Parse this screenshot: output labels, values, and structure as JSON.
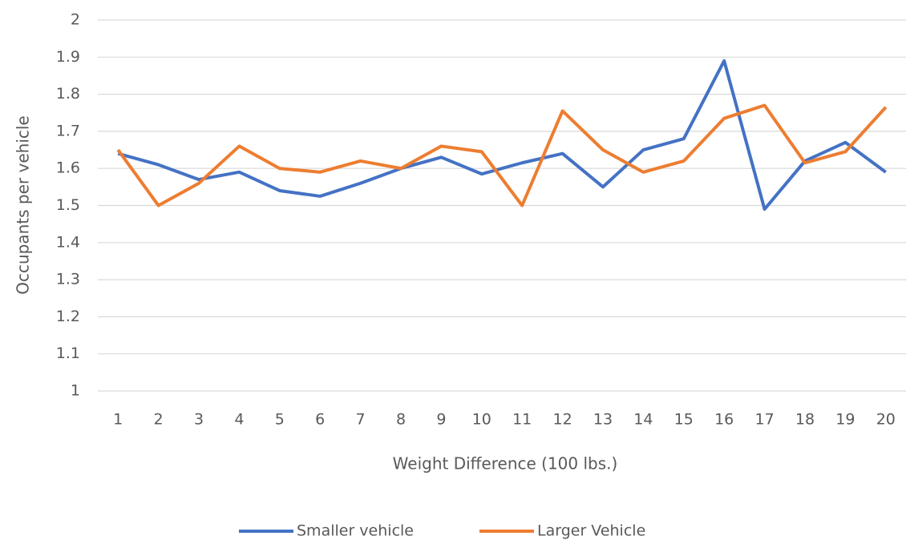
{
  "chart_data": {
    "type": "line",
    "x_label": "Weight Difference (100 lbs.)",
    "y_label": "Occupants per vehicle",
    "categories": [
      "1",
      "2",
      "3",
      "4",
      "5",
      "6",
      "7",
      "8",
      "9",
      "10",
      "11",
      "12",
      "13",
      "14",
      "15",
      "16",
      "17",
      "18",
      "19",
      "20"
    ],
    "series": [
      {
        "name": "Smaller vehicle",
        "color": "#4472c4",
        "values": [
          1.64,
          1.61,
          1.57,
          1.59,
          1.54,
          1.525,
          1.56,
          1.6,
          1.63,
          1.585,
          1.615,
          1.64,
          1.55,
          1.65,
          1.68,
          1.89,
          1.49,
          1.62,
          1.67,
          1.59
        ]
      },
      {
        "name": "Larger Vehicle",
        "color": "#ed7d31",
        "values": [
          1.65,
          1.5,
          1.56,
          1.66,
          1.6,
          1.59,
          1.62,
          1.6,
          1.66,
          1.645,
          1.5,
          1.755,
          1.65,
          1.59,
          1.62,
          1.735,
          1.77,
          1.615,
          1.645,
          1.765
        ]
      }
    ],
    "ylim": [
      1,
      2
    ],
    "yticks": [
      1,
      1.1,
      1.2,
      1.3,
      1.4,
      1.5,
      1.6,
      1.7,
      1.8,
      1.9,
      2
    ],
    "grid": true,
    "legend": "bottom"
  }
}
